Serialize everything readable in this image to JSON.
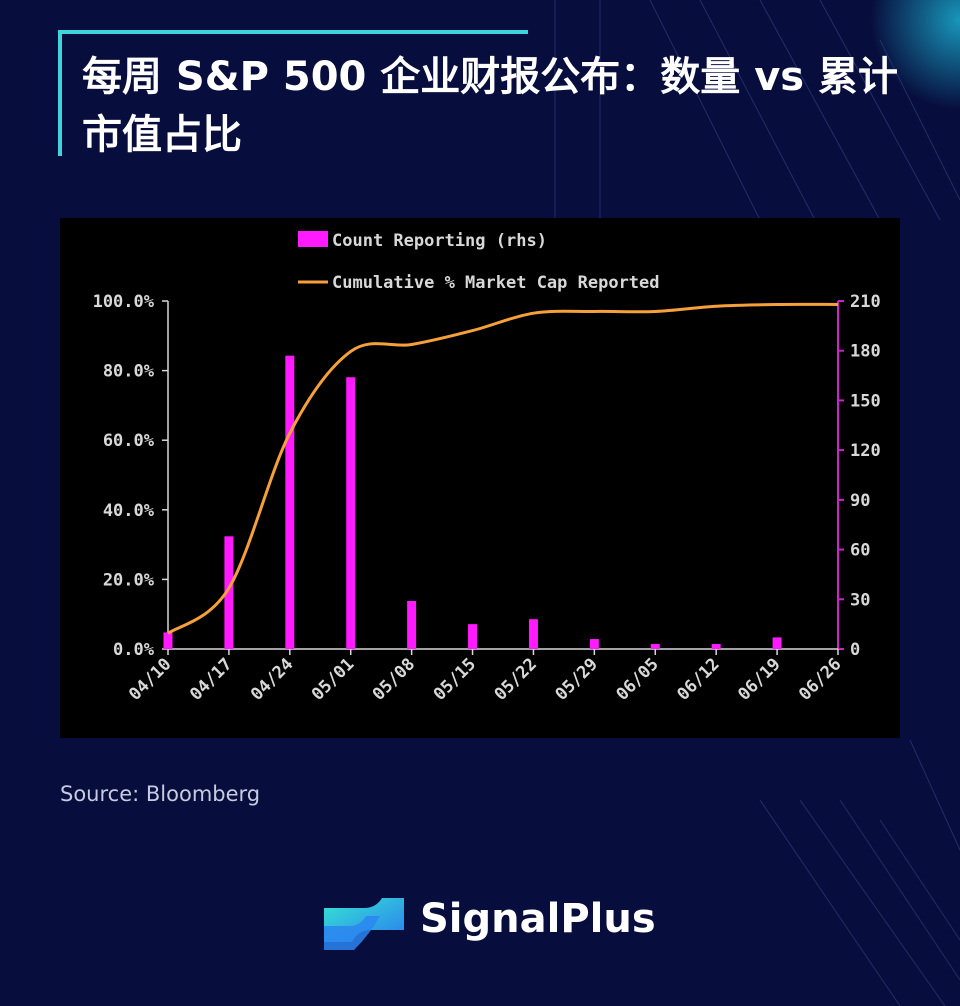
{
  "header": {
    "title": "每周 S&P 500 企业财报公布：数量 vs 累计市值占比"
  },
  "source": "Source: Bloomberg",
  "brand": {
    "name": "SignalPlus",
    "icon": "signalplus-logo-icon"
  },
  "colors": {
    "background": "#070d3c",
    "accent": "#3fd3dc",
    "bar": "#ff1aff",
    "line": "#f5a03a",
    "right_axis": "#cc22cc",
    "axis_text": "#d8d8d8"
  },
  "chart_data": {
    "type": "bar",
    "categories": [
      "04/10",
      "04/17",
      "04/24",
      "05/01",
      "05/08",
      "05/15",
      "05/22",
      "05/29",
      "06/05",
      "06/12",
      "06/19",
      "06/26"
    ],
    "series": [
      {
        "name": "Count Reporting (rhs)",
        "type": "bar",
        "axis": "right",
        "values": [
          10,
          68,
          177,
          164,
          29,
          15,
          18,
          6,
          3,
          3,
          7,
          0
        ]
      },
      {
        "name": "Cumulative % Market Cap Reported",
        "type": "line",
        "axis": "left",
        "values": [
          4.5,
          17.5,
          62,
          85.5,
          87.5,
          91.5,
          96.5,
          97,
          97,
          98.5,
          99,
          99
        ]
      }
    ],
    "y_left": {
      "ylim": [
        0,
        100
      ],
      "ticks": [
        0,
        20,
        40,
        60,
        80,
        100
      ],
      "tick_labels": [
        "0.0%",
        "20.0%",
        "40.0%",
        "60.0%",
        "80.0%",
        "100.0%"
      ]
    },
    "y_right": {
      "ylim": [
        0,
        210
      ],
      "ticks": [
        0,
        30,
        60,
        90,
        120,
        150,
        180,
        210
      ],
      "tick_labels": [
        "0",
        "30",
        "60",
        "90",
        "120",
        "150",
        "180",
        "210"
      ]
    },
    "legend_placement": "top-center",
    "grid": false
  }
}
